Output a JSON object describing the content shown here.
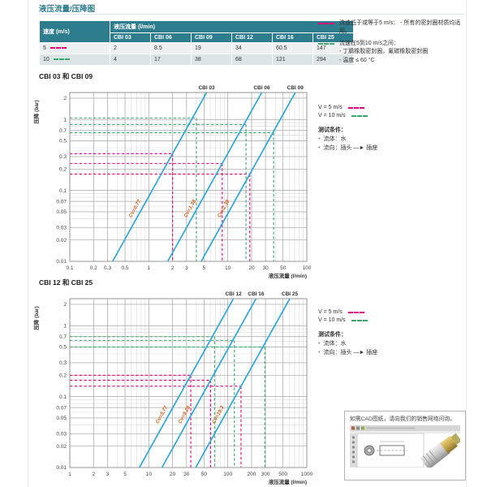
{
  "page": {
    "title": "液压流量/压降图"
  },
  "colors": {
    "teal": "#2e7d8e",
    "v5": "#e6007e",
    "v10": "#3aa76d",
    "curve": "#29a8dc",
    "curve_label": "#d2601a",
    "grid_minor": "#dadada",
    "grid_major": "#a8a8a8",
    "border": "#8c8c8c"
  },
  "table": {
    "speed_header": "速度 (m/s)",
    "flow_header": "液压流量 (l/min)",
    "columns": [
      "CBI 03",
      "CBI 06",
      "CBI 09",
      "CBI 12",
      "CBI 16",
      "CBI 25"
    ],
    "rows": [
      {
        "speed": "5",
        "values": [
          "2",
          "8.5",
          "19",
          "34",
          "60.5",
          "147"
        ]
      },
      {
        "speed": "10",
        "values": [
          "4",
          "17",
          "38",
          "68",
          "121",
          "294"
        ]
      }
    ]
  },
  "notes": {
    "v5": {
      "text": "流速低于或等于5 m/s： - 所有的密封圈材质均适用。"
    },
    "v10": {
      "line1": "流速在5到10 m/s之间：",
      "line2": "- 丁腈橡胶密封圈，氟碳橡胶密封圈",
      "line3": "- 温度 ≤ 60 °C"
    }
  },
  "legend": {
    "v5_label": "V = 5 m/s",
    "v10_label": "V = 10 m/s",
    "conditions_title": "测试条件：",
    "bullet_char": "•",
    "items": [
      "流体：水",
      "流向：插头 —► 插座"
    ]
  },
  "cad_box": {
    "text": "如需CAD图纸，请向我们的销售网络问询。"
  },
  "chart_data": [
    {
      "type": "line",
      "title": "CBI 03 和 CBI 09",
      "xlabel": "液压流量 (l/min)",
      "ylabel": "压降 (bar)",
      "xlim": [
        0.1,
        100
      ],
      "ylim": [
        0.01,
        2.4
      ],
      "xticks": [
        0.1,
        0.2,
        0.3,
        0.5,
        1,
        2,
        3,
        5,
        10,
        20,
        30,
        50,
        100
      ],
      "yticks": [
        2,
        1,
        0.7,
        0.5,
        0.3,
        0.2,
        0.1,
        0.07,
        0.05,
        0.03,
        0.02,
        0.01
      ],
      "scale": "log-log",
      "curves": [
        {
          "name": "CBI 03",
          "cv_label": "Cv=0.77",
          "anchor_point": [
            2,
            0.33
          ]
        },
        {
          "name": "CBI 06",
          "cv_label": "Cv=1.38",
          "anchor_point": [
            8.5,
            0.24
          ]
        },
        {
          "name": "CBI 09",
          "cv_label": "Cv=2.38",
          "anchor_point": [
            19,
            0.17
          ]
        }
      ],
      "guides": [
        {
          "name": "V = 5 m/s",
          "color_key": "v5",
          "points": [
            [
              2,
              0.33
            ],
            [
              8.5,
              0.24
            ],
            [
              19,
              0.17
            ]
          ]
        },
        {
          "name": "V = 10 m/s",
          "color_key": "v10",
          "points": [
            [
              4,
              1.05
            ],
            [
              17,
              0.85
            ],
            [
              38,
              0.65
            ]
          ]
        }
      ]
    },
    {
      "type": "line",
      "title": "CBI 12 和 CBI 25",
      "xlabel": "液压流量 (l/min)",
      "ylabel": "压降 (bar)",
      "xlim": [
        1,
        1000
      ],
      "ylim": [
        0.01,
        2.4
      ],
      "xticks": [
        1,
        2,
        3,
        5,
        10,
        20,
        30,
        50,
        100,
        200,
        300,
        500,
        1000
      ],
      "yticks": [
        2,
        1,
        0.7,
        0.5,
        0.3,
        0.2,
        0.1,
        0.07,
        0.05,
        0.03,
        0.02,
        0.01
      ],
      "scale": "log-log",
      "curves": [
        {
          "name": "CBI 12",
          "cv_label": "Cv=5.77",
          "anchor_point": [
            34,
            0.2
          ]
        },
        {
          "name": "CBI 16",
          "cv_label": "Cv=9.28",
          "anchor_point": [
            60.5,
            0.17
          ]
        },
        {
          "name": "CBI 25",
          "cv_label": "Cv=19.3",
          "anchor_point": [
            147,
            0.14
          ]
        }
      ],
      "guides": [
        {
          "name": "V = 5 m/s",
          "color_key": "v5",
          "points": [
            [
              34,
              0.2
            ],
            [
              60.5,
              0.17
            ],
            [
              147,
              0.14
            ]
          ]
        },
        {
          "name": "V = 10 m/s",
          "color_key": "v10",
          "points": [
            [
              68,
              0.7
            ],
            [
              121,
              0.62
            ],
            [
              294,
              0.5
            ]
          ]
        }
      ]
    }
  ]
}
